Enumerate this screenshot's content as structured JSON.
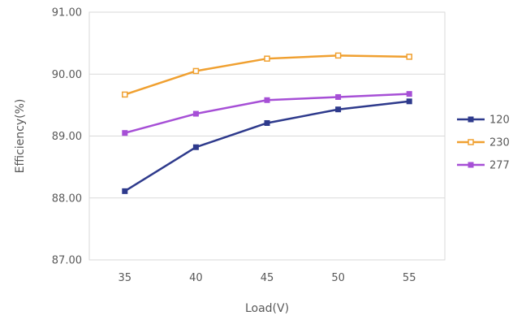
{
  "chart_data": {
    "type": "line",
    "title": "",
    "xlabel": "Load(V)",
    "ylabel": "Efficiency(%)",
    "x": [
      35,
      40,
      45,
      50,
      55
    ],
    "x_tick_labels": [
      "35",
      "40",
      "45",
      "50",
      "55"
    ],
    "ylim": [
      87,
      91
    ],
    "y_ticks": [
      87,
      88,
      89,
      90,
      91
    ],
    "y_tick_labels": [
      "87.00",
      "88.00",
      "89.00",
      "90.00",
      "91.00"
    ],
    "grid": "horizontal",
    "legend_position": "right",
    "series": [
      {
        "name": "120",
        "color": "#2E3A8C",
        "marker": "filled-square",
        "values": [
          88.11,
          88.82,
          89.21,
          89.43,
          89.56
        ]
      },
      {
        "name": "230",
        "color": "#F0A030",
        "marker": "hollow-square",
        "values": [
          89.67,
          90.05,
          90.25,
          90.3,
          90.28
        ]
      },
      {
        "name": "277",
        "color": "#A64FD6",
        "marker": "filled-square",
        "values": [
          89.05,
          89.36,
          89.58,
          89.63,
          89.68
        ]
      }
    ]
  }
}
